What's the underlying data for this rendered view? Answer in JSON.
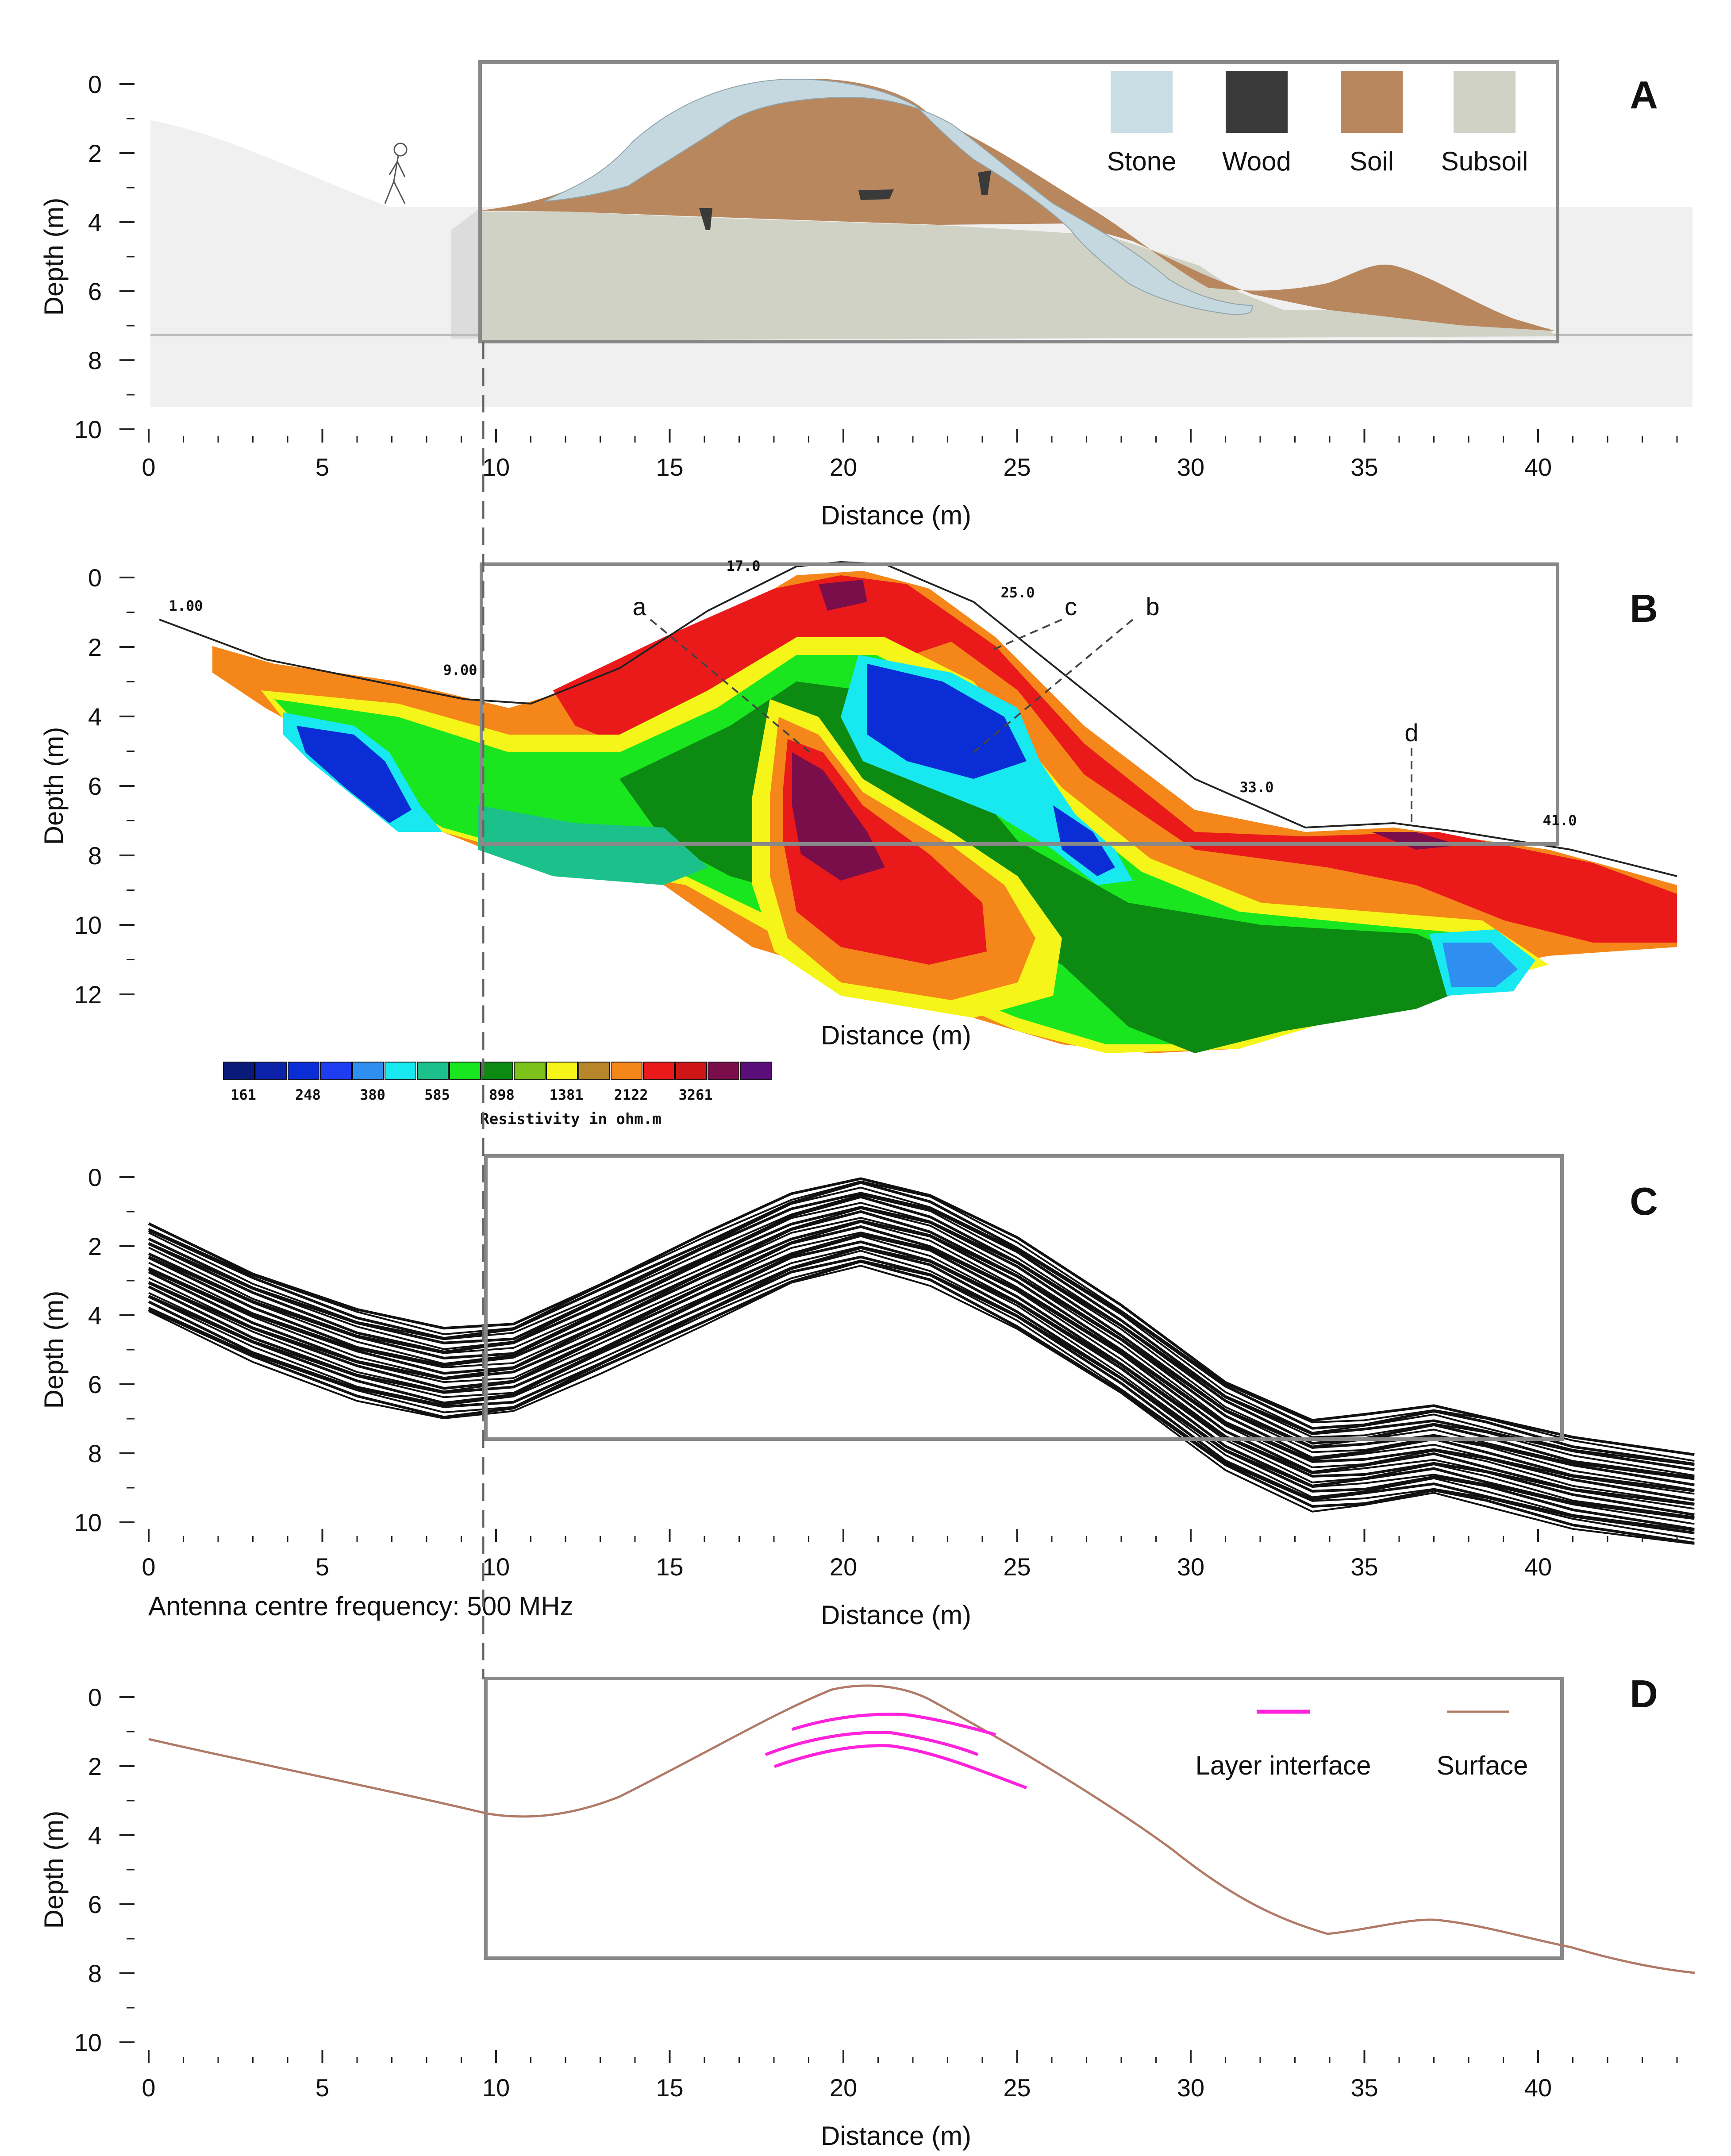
{
  "panels": {
    "a": {
      "label": "A",
      "ylabel": "Depth (m)",
      "xlabel": "Distance (m)",
      "x_ticks": [
        "0",
        "5",
        "10",
        "15",
        "20",
        "25",
        "30",
        "35",
        "40"
      ],
      "y_ticks": [
        "0",
        "2",
        "4",
        "6",
        "8",
        "10"
      ],
      "legend": [
        {
          "label": "Stone",
          "color": "#c9dde5"
        },
        {
          "label": "Wood",
          "color": "#3a3a3a"
        },
        {
          "label": "Soil",
          "color": "#b8875e"
        },
        {
          "label": "Subsoil",
          "color": "#cfd2c4"
        }
      ]
    },
    "b": {
      "label": "B",
      "ylabel": "Depth (m)",
      "xlabel": "Distance (m)",
      "y_ticks": [
        "0",
        "2",
        "4",
        "6",
        "8",
        "10",
        "12"
      ],
      "electrode_labels": [
        "1.00",
        "9.00",
        "17.0",
        "25.0",
        "33.0",
        "41.0"
      ],
      "annotations": [
        "a",
        "b",
        "c",
        "d"
      ],
      "colorbar_title": "Resistivity in ohm.m",
      "colorbar_ticks": [
        "161",
        "248",
        "380",
        "585",
        "898",
        "1381",
        "2122",
        "3261"
      ],
      "colorbar_colors": [
        "#0a1a7a",
        "#0b22a8",
        "#0a2dd6",
        "#1e3cf0",
        "#2f8ff0",
        "#18e8f0",
        "#1cc08a",
        "#19e61f",
        "#0c8a12",
        "#7cc21a",
        "#f5f51a",
        "#b8862a",
        "#f5861a",
        "#ea1a1a",
        "#cf1616",
        "#7a0e4a",
        "#5b0e7a"
      ]
    },
    "c": {
      "label": "C",
      "ylabel": "Depth (m)",
      "xlabel": "Distance (m)",
      "x_ticks": [
        "0",
        "5",
        "10",
        "15",
        "20",
        "25",
        "30",
        "35",
        "40"
      ],
      "y_ticks": [
        "0",
        "2",
        "4",
        "6",
        "8",
        "10"
      ],
      "note": "Antenna centre frequency: 500 MHz"
    },
    "d": {
      "label": "D",
      "ylabel": "Depth (m)",
      "xlabel": "Distance (m)",
      "x_ticks": [
        "0",
        "5",
        "10",
        "15",
        "20",
        "25",
        "30",
        "35",
        "40"
      ],
      "y_ticks": [
        "0",
        "2",
        "4",
        "6",
        "8",
        "10"
      ],
      "legend": [
        {
          "label": "Layer interface",
          "color": "#ff22dd"
        },
        {
          "label": "Surface",
          "color": "#b07a66"
        }
      ]
    }
  }
}
